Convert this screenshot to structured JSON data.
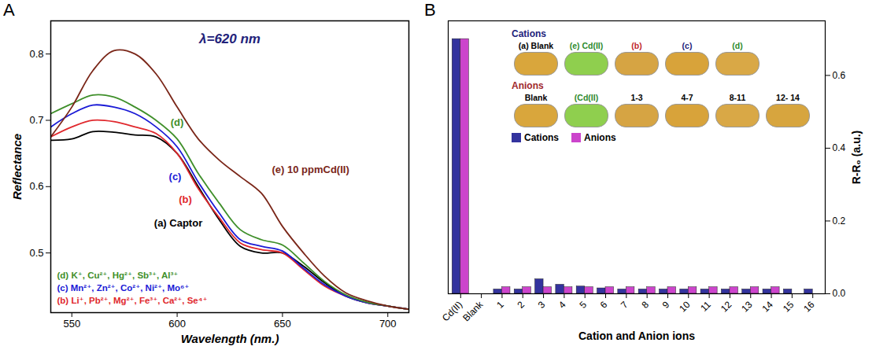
{
  "chart_data": [
    {
      "type": "line",
      "panel": "A",
      "title": "λ=620 nm",
      "x_label": "Wavelength (nm.)",
      "y_label": "Reflectance",
      "x": [
        540,
        550,
        560,
        570,
        580,
        590,
        600,
        610,
        620,
        630,
        640,
        650,
        660,
        670,
        680,
        690,
        700,
        710
      ],
      "series": [
        {
          "name": "(a) Captor",
          "color": "#000000",
          "values": [
            0.67,
            0.672,
            0.683,
            0.682,
            0.678,
            0.675,
            0.65,
            0.6,
            0.55,
            0.51,
            0.5,
            0.5,
            0.48,
            0.455,
            0.435,
            0.425,
            0.42,
            0.415
          ]
        },
        {
          "name": "(b)",
          "color": "#e0282d",
          "values": [
            0.675,
            0.69,
            0.7,
            0.698,
            0.69,
            0.68,
            0.65,
            0.597,
            0.553,
            0.515,
            0.505,
            0.5,
            0.475,
            0.45,
            0.435,
            0.425,
            0.42,
            0.415
          ]
        },
        {
          "name": "(c)",
          "color": "#1a1ad6",
          "values": [
            0.69,
            0.71,
            0.723,
            0.72,
            0.71,
            0.69,
            0.66,
            0.607,
            0.56,
            0.52,
            0.51,
            0.503,
            0.477,
            0.452,
            0.435,
            0.425,
            0.42,
            0.415
          ]
        },
        {
          "name": "(d)",
          "color": "#3f8f2a",
          "values": [
            0.71,
            0.725,
            0.738,
            0.735,
            0.72,
            0.7,
            0.672,
            0.62,
            0.575,
            0.535,
            0.52,
            0.512,
            0.485,
            0.457,
            0.437,
            0.426,
            0.42,
            0.415
          ]
        },
        {
          "name": "(e) 10 ppmCd(II)",
          "color": "#7a2618",
          "values": [
            0.675,
            0.72,
            0.775,
            0.805,
            0.8,
            0.77,
            0.72,
            0.672,
            0.64,
            0.615,
            0.59,
            0.54,
            0.5,
            0.465,
            0.44,
            0.428,
            0.42,
            0.415
          ]
        }
      ],
      "annotations": [
        {
          "text": "(d) K⁺, Cu²⁺, Hg²⁺, Sb³⁺, Al³⁺",
          "color": "#3f8f2a"
        },
        {
          "text": "(c) Mn²⁺, Zn²⁺, Co²⁺, Ni²⁺, Mo⁶⁺",
          "color": "#1a1ad6"
        },
        {
          "text": "(b) Li⁺, Pb²⁺, Mg²⁺, Fe³⁺, Ca²⁺, Se⁴⁺",
          "color": "#e0282d"
        }
      ],
      "xlim": [
        540,
        710
      ],
      "ylim": [
        0.41,
        0.85
      ],
      "xticks": [
        550,
        600,
        650,
        700
      ],
      "yticks": [
        0.5,
        0.6,
        0.7,
        0.8
      ],
      "grid": false
    },
    {
      "type": "bar",
      "panel": "B",
      "x_label": "Cation and Anion ions",
      "y_label": "R-R₀ (a.u.)",
      "categories": [
        "Cd(II)",
        "Blank",
        "1",
        "2",
        "3",
        "4",
        "5",
        "6",
        "7",
        "8",
        "9",
        "10",
        "11",
        "12",
        "13",
        "14",
        "15",
        "16"
      ],
      "series": [
        {
          "name": "Cations",
          "color": "#33339e",
          "values": [
            0.7,
            0,
            0.012,
            0.012,
            0.04,
            0.025,
            0.02,
            0.015,
            0.012,
            0.012,
            0.012,
            0.012,
            0.012,
            0.012,
            0.012,
            0.012,
            0.012,
            0.012
          ]
        },
        {
          "name": "Anions",
          "color": "#cc44cc",
          "values": [
            0.7,
            0,
            0.018,
            0.018,
            0.018,
            0.018,
            0.018,
            0.018,
            0.018,
            0.018,
            0.018,
            0.018,
            0.018,
            0.018,
            0.018,
            0.018,
            null,
            null
          ]
        }
      ],
      "ylim": [
        0,
        0.75
      ],
      "yticks": [
        {
          "value": 0,
          "label": "0.0"
        },
        0.2,
        0.4,
        0.6
      ],
      "legend": "top-right",
      "grid": false,
      "insets": [
        {
          "name": "Cations",
          "color": "#22227a",
          "labels": [
            "(a) Blank",
            "(e) Cd(II)",
            "(b)",
            "(c)",
            "(d)"
          ],
          "label_colors": [
            "#000000",
            "#2e8b2e",
            "#c0282d",
            "#22227a",
            "#2e8b2e"
          ],
          "colors": [
            "#d9a63c",
            "#8fcf4e",
            "#d6a443",
            "#d8a33a",
            "#d9a846"
          ]
        },
        {
          "name": "Anions",
          "color": "#a0282d",
          "labels": [
            "Blank",
            "(Cd(II)",
            "1-3",
            "4-7",
            "8-11",
            "12- 14"
          ],
          "label_colors": [
            "#000000",
            "#2e8b2e",
            "#000000",
            "#000000",
            "#000000",
            "#000000"
          ],
          "colors": [
            "#d9a63c",
            "#8fcf4e",
            "#d6a443",
            "#d8a33a",
            "#d9a846",
            "#d7a53e"
          ]
        }
      ]
    }
  ]
}
